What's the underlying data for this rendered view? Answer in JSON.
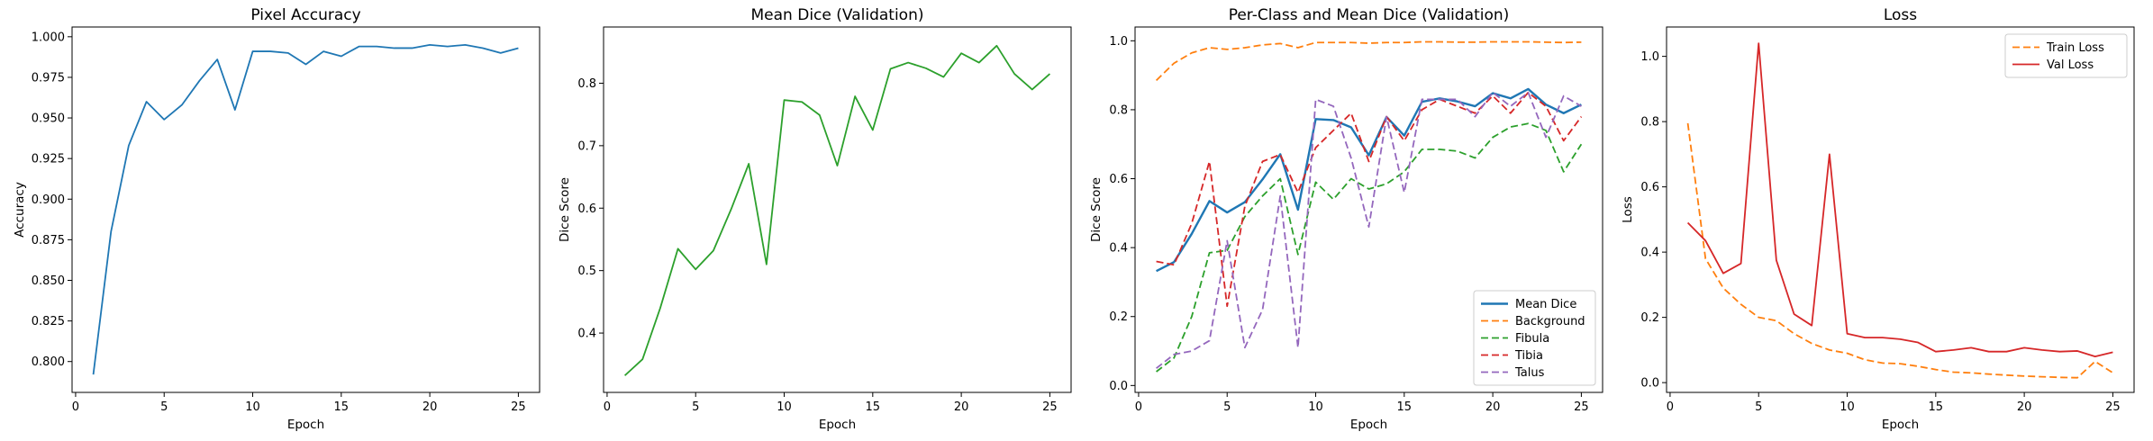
{
  "colors": {
    "blue": "#1f77b4",
    "orange": "#ff7f0e",
    "green": "#2ca02c",
    "red": "#d62728",
    "purple": "#9467bd"
  },
  "chart_data": [
    {
      "type": "line",
      "title": "Pixel Accuracy",
      "xlabel": "Epoch",
      "ylabel": "Accuracy",
      "xlim": [
        -0.2,
        26.2
      ],
      "ylim": [
        0.781,
        1.006
      ],
      "xticks": [
        "0",
        "5",
        "10",
        "15",
        "20",
        "25"
      ],
      "yticks": [
        "0.800",
        "0.825",
        "0.850",
        "0.875",
        "0.900",
        "0.925",
        "0.950",
        "0.975",
        "1.000"
      ],
      "legend": null,
      "series": [
        {
          "color": "#1f77b4",
          "dash": "solid",
          "width": 1.8,
          "x": [
            1,
            2,
            3,
            4,
            5,
            6,
            7,
            8,
            9,
            10,
            11,
            12,
            13,
            14,
            15,
            16,
            17,
            18,
            19,
            20,
            21,
            22,
            23,
            24,
            25
          ],
          "values": [
            0.792,
            0.88,
            0.933,
            0.96,
            0.949,
            0.958,
            0.973,
            0.986,
            0.955,
            0.991,
            0.991,
            0.99,
            0.983,
            0.991,
            0.988,
            0.994,
            0.994,
            0.993,
            0.993,
            0.995,
            0.994,
            0.995,
            0.993,
            0.99,
            0.993
          ]
        }
      ]
    },
    {
      "type": "line",
      "title": "Mean Dice (Validation)",
      "xlabel": "Epoch",
      "ylabel": "Dice Score",
      "xlim": [
        -0.2,
        26.2
      ],
      "ylim": [
        0.305,
        0.89
      ],
      "xticks": [
        "0",
        "5",
        "10",
        "15",
        "20",
        "25"
      ],
      "yticks": [
        "0.4",
        "0.5",
        "0.6",
        "0.7",
        "0.8"
      ],
      "legend": null,
      "series": [
        {
          "color": "#2ca02c",
          "dash": "solid",
          "width": 1.8,
          "x": [
            1,
            2,
            3,
            4,
            5,
            6,
            7,
            8,
            9,
            10,
            11,
            12,
            13,
            14,
            15,
            16,
            17,
            18,
            19,
            20,
            21,
            22,
            23,
            24,
            25
          ],
          "values": [
            0.332,
            0.358,
            0.44,
            0.535,
            0.502,
            0.532,
            0.598,
            0.671,
            0.51,
            0.773,
            0.77,
            0.749,
            0.668,
            0.779,
            0.725,
            0.823,
            0.833,
            0.824,
            0.81,
            0.848,
            0.833,
            0.86,
            0.815,
            0.79,
            0.815
          ]
        }
      ]
    },
    {
      "type": "line",
      "title": "Per-Class and Mean Dice (Validation)",
      "xlabel": "Epoch",
      "ylabel": "Dice Score",
      "xlim": [
        -0.2,
        26.2
      ],
      "ylim": [
        -0.02,
        1.04
      ],
      "xticks": [
        "0",
        "5",
        "10",
        "15",
        "20",
        "25"
      ],
      "yticks": [
        "0.0",
        "0.2",
        "0.4",
        "0.6",
        "0.8",
        "1.0"
      ],
      "legend": "lower right",
      "series": [
        {
          "name": "Mean Dice",
          "color": "#1f77b4",
          "dash": "solid",
          "width": 2.4,
          "x": [
            1,
            2,
            3,
            4,
            5,
            6,
            7,
            8,
            9,
            10,
            11,
            12,
            13,
            14,
            15,
            16,
            17,
            18,
            19,
            20,
            21,
            22,
            23,
            24,
            25
          ],
          "values": [
            0.332,
            0.358,
            0.44,
            0.535,
            0.502,
            0.532,
            0.598,
            0.671,
            0.51,
            0.773,
            0.77,
            0.749,
            0.668,
            0.779,
            0.725,
            0.823,
            0.833,
            0.824,
            0.81,
            0.848,
            0.833,
            0.86,
            0.815,
            0.79,
            0.815
          ]
        },
        {
          "name": "Background",
          "color": "#ff7f0e",
          "dash": "dashed",
          "width": 1.8,
          "x": [
            1,
            2,
            3,
            4,
            5,
            6,
            7,
            8,
            9,
            10,
            11,
            12,
            13,
            14,
            15,
            16,
            17,
            18,
            19,
            20,
            21,
            22,
            23,
            24,
            25
          ],
          "values": [
            0.885,
            0.935,
            0.965,
            0.98,
            0.975,
            0.98,
            0.988,
            0.992,
            0.98,
            0.995,
            0.995,
            0.995,
            0.993,
            0.995,
            0.995,
            0.997,
            0.997,
            0.996,
            0.996,
            0.997,
            0.997,
            0.997,
            0.996,
            0.995,
            0.996
          ]
        },
        {
          "name": "Fibula",
          "color": "#2ca02c",
          "dash": "dashed",
          "width": 1.8,
          "x": [
            1,
            2,
            3,
            4,
            5,
            6,
            7,
            8,
            9,
            10,
            11,
            12,
            13,
            14,
            15,
            16,
            17,
            18,
            19,
            20,
            21,
            22,
            23,
            24,
            25
          ],
          "values": [
            0.04,
            0.08,
            0.2,
            0.385,
            0.392,
            0.49,
            0.55,
            0.6,
            0.38,
            0.59,
            0.54,
            0.6,
            0.57,
            0.585,
            0.62,
            0.685,
            0.685,
            0.68,
            0.66,
            0.72,
            0.75,
            0.76,
            0.74,
            0.62,
            0.7
          ]
        },
        {
          "name": "Tibia",
          "color": "#d62728",
          "dash": "dashed",
          "width": 1.8,
          "x": [
            1,
            2,
            3,
            4,
            5,
            6,
            7,
            8,
            9,
            10,
            11,
            12,
            13,
            14,
            15,
            16,
            17,
            18,
            19,
            20,
            21,
            22,
            23,
            24,
            25
          ],
          "values": [
            0.36,
            0.35,
            0.47,
            0.65,
            0.23,
            0.52,
            0.65,
            0.67,
            0.56,
            0.69,
            0.74,
            0.79,
            0.65,
            0.78,
            0.71,
            0.8,
            0.83,
            0.81,
            0.79,
            0.84,
            0.79,
            0.85,
            0.81,
            0.71,
            0.78
          ]
        },
        {
          "name": "Talus",
          "color": "#9467bd",
          "dash": "dashed",
          "width": 1.8,
          "x": [
            1,
            2,
            3,
            4,
            5,
            6,
            7,
            8,
            9,
            10,
            11,
            12,
            13,
            14,
            15,
            16,
            17,
            18,
            19,
            20,
            21,
            22,
            23,
            24,
            25
          ],
          "values": [
            0.05,
            0.09,
            0.1,
            0.13,
            0.42,
            0.11,
            0.22,
            0.55,
            0.11,
            0.83,
            0.81,
            0.66,
            0.46,
            0.78,
            0.56,
            0.83,
            0.83,
            0.83,
            0.78,
            0.85,
            0.81,
            0.85,
            0.72,
            0.84,
            0.81
          ]
        }
      ]
    },
    {
      "type": "line",
      "title": "Loss",
      "xlabel": "Epoch",
      "ylabel": "Loss",
      "xlim": [
        -0.2,
        26.2
      ],
      "ylim": [
        -0.03,
        1.09
      ],
      "xticks": [
        "0",
        "5",
        "10",
        "15",
        "20",
        "25"
      ],
      "yticks": [
        "0.0",
        "0.2",
        "0.4",
        "0.6",
        "0.8",
        "1.0"
      ],
      "legend": "upper right",
      "series": [
        {
          "name": "Train Loss",
          "color": "#ff7f0e",
          "dash": "dashed",
          "width": 1.8,
          "x": [
            1,
            2,
            3,
            4,
            5,
            6,
            7,
            8,
            9,
            10,
            11,
            12,
            13,
            14,
            15,
            16,
            17,
            18,
            19,
            20,
            21,
            22,
            23,
            24,
            25
          ],
          "values": [
            0.795,
            0.38,
            0.29,
            0.24,
            0.2,
            0.19,
            0.15,
            0.12,
            0.1,
            0.09,
            0.07,
            0.06,
            0.058,
            0.05,
            0.04,
            0.032,
            0.03,
            0.026,
            0.023,
            0.02,
            0.018,
            0.016,
            0.015,
            0.065,
            0.03
          ]
        },
        {
          "name": "Val Loss",
          "color": "#d62728",
          "dash": "solid",
          "width": 1.8,
          "x": [
            1,
            2,
            3,
            4,
            5,
            6,
            7,
            8,
            9,
            10,
            11,
            12,
            13,
            14,
            15,
            16,
            17,
            18,
            19,
            20,
            21,
            22,
            23,
            24,
            25
          ],
          "values": [
            0.49,
            0.435,
            0.335,
            0.365,
            1.04,
            0.375,
            0.21,
            0.175,
            0.7,
            0.15,
            0.138,
            0.138,
            0.133,
            0.123,
            0.095,
            0.1,
            0.107,
            0.095,
            0.095,
            0.107,
            0.1,
            0.095,
            0.097,
            0.08,
            0.093
          ]
        }
      ]
    }
  ]
}
